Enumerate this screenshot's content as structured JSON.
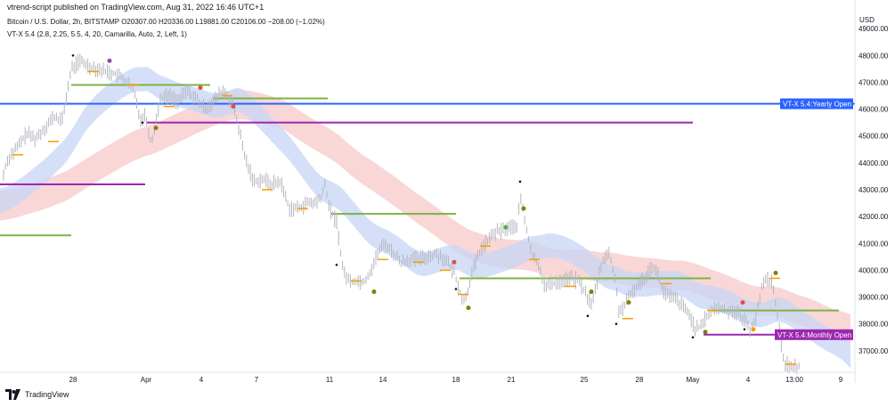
{
  "header": {
    "published": "vtrend-script published on TradingView.com, Aug 31, 2022 16:46 UTC+1"
  },
  "legend": {
    "line1": "Bitcoin / U.S. Dollar, 2h, BITSTAMP  O20307.00  H20336.00  L19881.00  C20106.00  −208.00 (−1.02%)",
    "line2": "VT-X 5.4 (2.8, 2.25, 5.5, 4, 20, Camarilla, Auto, 2, Left, 1)"
  },
  "brand": {
    "name": "TradingView"
  },
  "colors": {
    "blue_line": "#2962ff",
    "purple_line": "#9c27b0",
    "green_line": "#7cb342",
    "orange_tick": "#ff9800",
    "blue_band": "#c7d6f5",
    "red_band": "#f7c9c9",
    "candle": "#b2b5be"
  },
  "chart_data": {
    "type": "line",
    "title": "Bitcoin / U.S. Dollar, 2h, BITSTAMP",
    "currency": "USD",
    "y_ticks": [
      "37000.00",
      "38000.00",
      "39000.00",
      "40000.00",
      "41000.00",
      "42000.00",
      "43000.00",
      "44000.00",
      "45000.00",
      "46000.00",
      "47000.00",
      "48000.00",
      "49000.00"
    ],
    "x_ticks": [
      "28",
      "Apr",
      "4",
      "7",
      "11",
      "14",
      "18",
      "21",
      "25",
      "28",
      "May",
      "4",
      "13:00",
      "9"
    ],
    "ylim": [
      36200,
      49800
    ],
    "price_path": [
      [
        0,
        42600
      ],
      [
        5,
        43800
      ],
      [
        10,
        44200
      ],
      [
        20,
        44600
      ],
      [
        30,
        45100
      ],
      [
        40,
        44900
      ],
      [
        50,
        45300
      ],
      [
        60,
        45700
      ],
      [
        70,
        45600
      ],
      [
        80,
        47500
      ],
      [
        90,
        47800
      ],
      [
        100,
        47600
      ],
      [
        110,
        47500
      ],
      [
        120,
        47400
      ],
      [
        130,
        47300
      ],
      [
        140,
        47100
      ],
      [
        150,
        46700
      ],
      [
        158,
        45600
      ],
      [
        163,
        45800
      ],
      [
        170,
        44700
      ],
      [
        180,
        46400
      ],
      [
        190,
        46500
      ],
      [
        200,
        46300
      ],
      [
        210,
        46700
      ],
      [
        220,
        46400
      ],
      [
        230,
        46000
      ],
      [
        240,
        46300
      ],
      [
        250,
        46700
      ],
      [
        255,
        46500
      ],
      [
        262,
        46100
      ],
      [
        268,
        45300
      ],
      [
        275,
        44200
      ],
      [
        285,
        43300
      ],
      [
        295,
        43400
      ],
      [
        305,
        43200
      ],
      [
        315,
        43300
      ],
      [
        325,
        42300
      ],
      [
        335,
        42300
      ],
      [
        345,
        42500
      ],
      [
        355,
        42500
      ],
      [
        362,
        42800
      ],
      [
        365,
        43200
      ],
      [
        370,
        42300
      ],
      [
        378,
        41800
      ],
      [
        385,
        40000
      ],
      [
        392,
        39600
      ],
      [
        400,
        39600
      ],
      [
        410,
        39600
      ],
      [
        418,
        40100
      ],
      [
        425,
        40700
      ],
      [
        432,
        41000
      ],
      [
        440,
        40700
      ],
      [
        450,
        40300
      ],
      [
        460,
        40400
      ],
      [
        470,
        40400
      ],
      [
        480,
        40500
      ],
      [
        490,
        40600
      ],
      [
        500,
        40400
      ],
      [
        510,
        39900
      ],
      [
        515,
        39400
      ],
      [
        520,
        38800
      ],
      [
        525,
        39200
      ],
      [
        530,
        39900
      ],
      [
        540,
        40800
      ],
      [
        548,
        41100
      ],
      [
        555,
        41400
      ],
      [
        565,
        41500
      ],
      [
        572,
        41600
      ],
      [
        580,
        41600
      ],
      [
        585,
        42700
      ],
      [
        590,
        41700
      ],
      [
        598,
        40500
      ],
      [
        605,
        40200
      ],
      [
        612,
        39400
      ],
      [
        620,
        39500
      ],
      [
        630,
        39600
      ],
      [
        640,
        39700
      ],
      [
        650,
        39600
      ],
      [
        658,
        39100
      ],
      [
        665,
        38700
      ],
      [
        672,
        39800
      ],
      [
        678,
        40500
      ],
      [
        684,
        40600
      ],
      [
        690,
        39800
      ],
      [
        695,
        38500
      ],
      [
        700,
        38600
      ],
      [
        710,
        39200
      ],
      [
        718,
        39500
      ],
      [
        725,
        39800
      ],
      [
        733,
        40200
      ],
      [
        738,
        39900
      ],
      [
        745,
        39200
      ],
      [
        752,
        39000
      ],
      [
        760,
        38900
      ],
      [
        768,
        38600
      ],
      [
        775,
        38300
      ],
      [
        781,
        37800
      ],
      [
        788,
        37900
      ],
      [
        795,
        38400
      ],
      [
        805,
        38600
      ],
      [
        815,
        38500
      ],
      [
        825,
        38500
      ],
      [
        835,
        38200
      ],
      [
        842,
        37800
      ],
      [
        850,
        38300
      ],
      [
        856,
        39500
      ],
      [
        862,
        39700
      ],
      [
        868,
        39500
      ],
      [
        872,
        38500
      ],
      [
        876,
        37600
      ],
      [
        880,
        36600
      ],
      [
        888,
        36400
      ],
      [
        898,
        36400
      ]
    ],
    "horizontal_levels": [
      {
        "name": "VT-X 5.4:Yearly Open",
        "value": 46200,
        "from": 0,
        "to": 960,
        "color": "blue"
      },
      {
        "name": "purple level",
        "value": 45500,
        "from": 165,
        "to": 778,
        "color": "purple"
      },
      {
        "name": "purple level",
        "value": 43200,
        "from": 0,
        "to": 163,
        "color": "purple"
      },
      {
        "name": "green level",
        "value": 41300,
        "from": 0,
        "to": 80,
        "color": "green"
      },
      {
        "name": "green level",
        "value": 46900,
        "from": 80,
        "to": 236,
        "color": "green"
      },
      {
        "name": "green level",
        "value": 46400,
        "from": 240,
        "to": 368,
        "color": "green"
      },
      {
        "name": "green level",
        "value": 42100,
        "from": 372,
        "to": 512,
        "color": "green"
      },
      {
        "name": "green level",
        "value": 39700,
        "from": 516,
        "to": 798,
        "color": "green"
      },
      {
        "name": "green level",
        "value": 38500,
        "from": 800,
        "to": 942,
        "color": "green"
      },
      {
        "name": "VT-X 5.4:Monthly Open",
        "value": 37600,
        "from": 790,
        "to": 870,
        "color": "purple"
      }
    ],
    "badges": [
      {
        "text": "VT-X 5.4:Yearly Open",
        "value": 46200,
        "color": "blue"
      },
      {
        "text": "VT-X 5.4:Monthly Open",
        "value": 37600,
        "color": "purple"
      }
    ]
  }
}
